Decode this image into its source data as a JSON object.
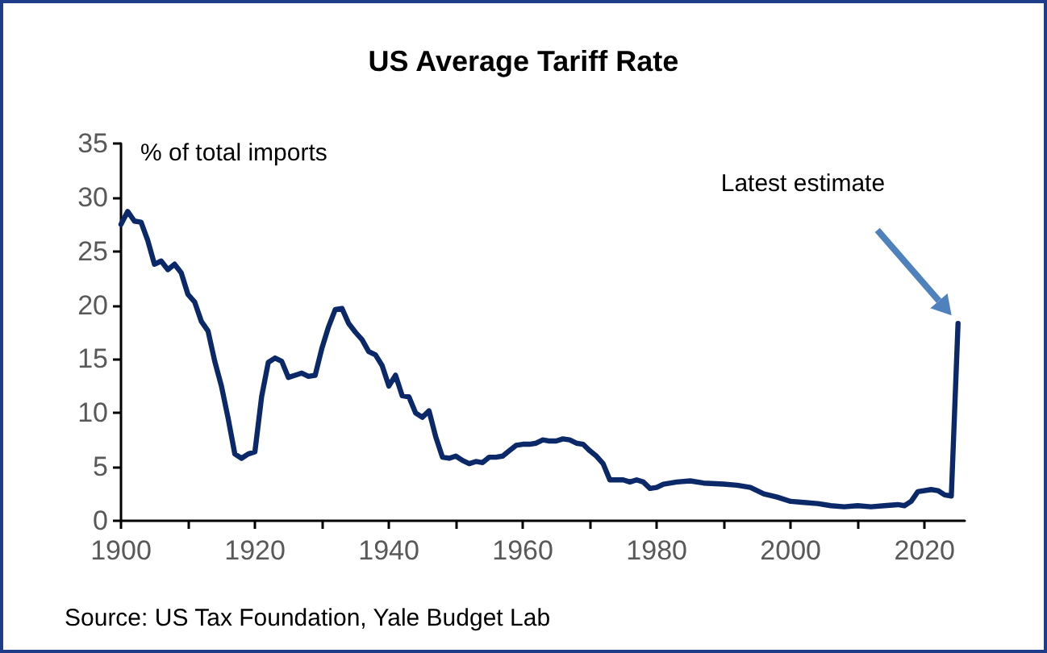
{
  "chart_data": {
    "type": "line",
    "title": "US Average Tariff Rate",
    "ylabel": "% of total imports",
    "x": [
      1900,
      1901,
      1902,
      1903,
      1904,
      1905,
      1906,
      1907,
      1908,
      1909,
      1910,
      1911,
      1912,
      1913,
      1914,
      1915,
      1916,
      1917,
      1918,
      1919,
      1920,
      1921,
      1922,
      1923,
      1924,
      1925,
      1926,
      1927,
      1928,
      1929,
      1930,
      1931,
      1932,
      1933,
      1934,
      1935,
      1936,
      1937,
      1938,
      1939,
      1940,
      1941,
      1942,
      1943,
      1944,
      1945,
      1946,
      1947,
      1948,
      1949,
      1950,
      1951,
      1952,
      1953,
      1954,
      1955,
      1956,
      1957,
      1958,
      1959,
      1960,
      1961,
      1962,
      1963,
      1964,
      1965,
      1966,
      1967,
      1968,
      1969,
      1970,
      1971,
      1972,
      1973,
      1974,
      1975,
      1976,
      1977,
      1978,
      1979,
      1980,
      1981,
      1983,
      1985,
      1987,
      1990,
      1992,
      1994,
      1996,
      1998,
      2000,
      2002,
      2004,
      2006,
      2008,
      2010,
      2012,
      2014,
      2016,
      2017,
      2018,
      2019,
      2021,
      2022,
      2023,
      2024,
      2025
    ],
    "series": [
      {
        "color": "#0b2868",
        "values": [
          27.5,
          28.7,
          27.8,
          27.7,
          26,
          23.8,
          24.1,
          23.3,
          23.8,
          23,
          21,
          20.3,
          18.5,
          17.6,
          14.8,
          12.5,
          9.5,
          6.2,
          5.8,
          6.2,
          6.4,
          11.5,
          14.7,
          15.1,
          14.8,
          13.3,
          13.5,
          13.7,
          13.4,
          13.5,
          16,
          18,
          19.6,
          19.7,
          18.3,
          17.5,
          16.8,
          15.7,
          15.4,
          14.4,
          12.5,
          13.5,
          11.6,
          11.5,
          10,
          9.6,
          10.2,
          7.8,
          5.9,
          5.8,
          6,
          5.6,
          5.3,
          5.5,
          5.4,
          5.9,
          5.9,
          6,
          6.5,
          7,
          7.1,
          7.1,
          7.2,
          7.5,
          7.4,
          7.4,
          7.6,
          7.5,
          7.2,
          7.1,
          6.5,
          6,
          5.3,
          3.8,
          3.8,
          3.8,
          3.6,
          3.8,
          3.6,
          3,
          3.1,
          3.4,
          3.6,
          3.7,
          3.5,
          3.4,
          3.3,
          3.1,
          2.5,
          2.2,
          1.8,
          1.7,
          1.6,
          1.4,
          1.3,
          1.4,
          1.3,
          1.4,
          1.5,
          1.4,
          1.8,
          2.7,
          2.9,
          2.8,
          2.4,
          2.3,
          18.3
        ]
      }
    ],
    "xlim": [
      1900,
      2026
    ],
    "xticks": [
      1900,
      {
        "value": 1910,
        "label": null
      },
      1920,
      {
        "value": 1930,
        "label": null
      },
      1940,
      {
        "value": 1950,
        "label": null
      },
      1960,
      {
        "value": 1970,
        "label": null
      },
      1980,
      {
        "value": 1990,
        "label": null
      },
      2000,
      {
        "value": 2010,
        "label": null
      },
      2020
    ],
    "ylim": [
      0,
      35
    ],
    "yticks": [
      0,
      5,
      10,
      15,
      20,
      25,
      30,
      35
    ],
    "grid": false,
    "marker": "none",
    "line_style": "solid",
    "annotations": [
      "Latest estimate",
      "Source: US Tax Foundation, Yale Budget Lab"
    ]
  }
}
